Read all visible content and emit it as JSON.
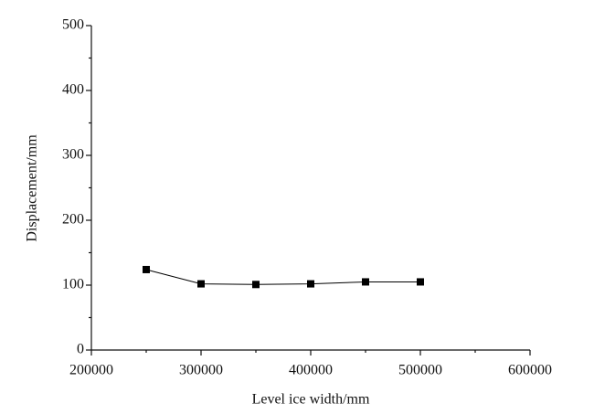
{
  "chart_data": {
    "type": "line",
    "x_label": "Level ice width/mm",
    "y_label": "Displacement/mm",
    "x": [
      250000,
      300000,
      350000,
      400000,
      450000,
      500000
    ],
    "series": [
      {
        "name": null,
        "color": "#000000",
        "values": [
          124,
          102,
          101,
          102,
          105,
          105
        ]
      }
    ],
    "xlim": [
      200000,
      600000
    ],
    "xticks": [
      200000,
      300000,
      400000,
      500000,
      600000
    ],
    "xminorticks": [
      250000,
      350000,
      450000,
      550000
    ],
    "ylim": [
      0,
      500
    ],
    "yticks": [
      0,
      100,
      200,
      300,
      400,
      500
    ],
    "yminorticks": [
      50,
      150,
      250,
      350,
      450
    ],
    "grid": false,
    "marker": "square"
  }
}
